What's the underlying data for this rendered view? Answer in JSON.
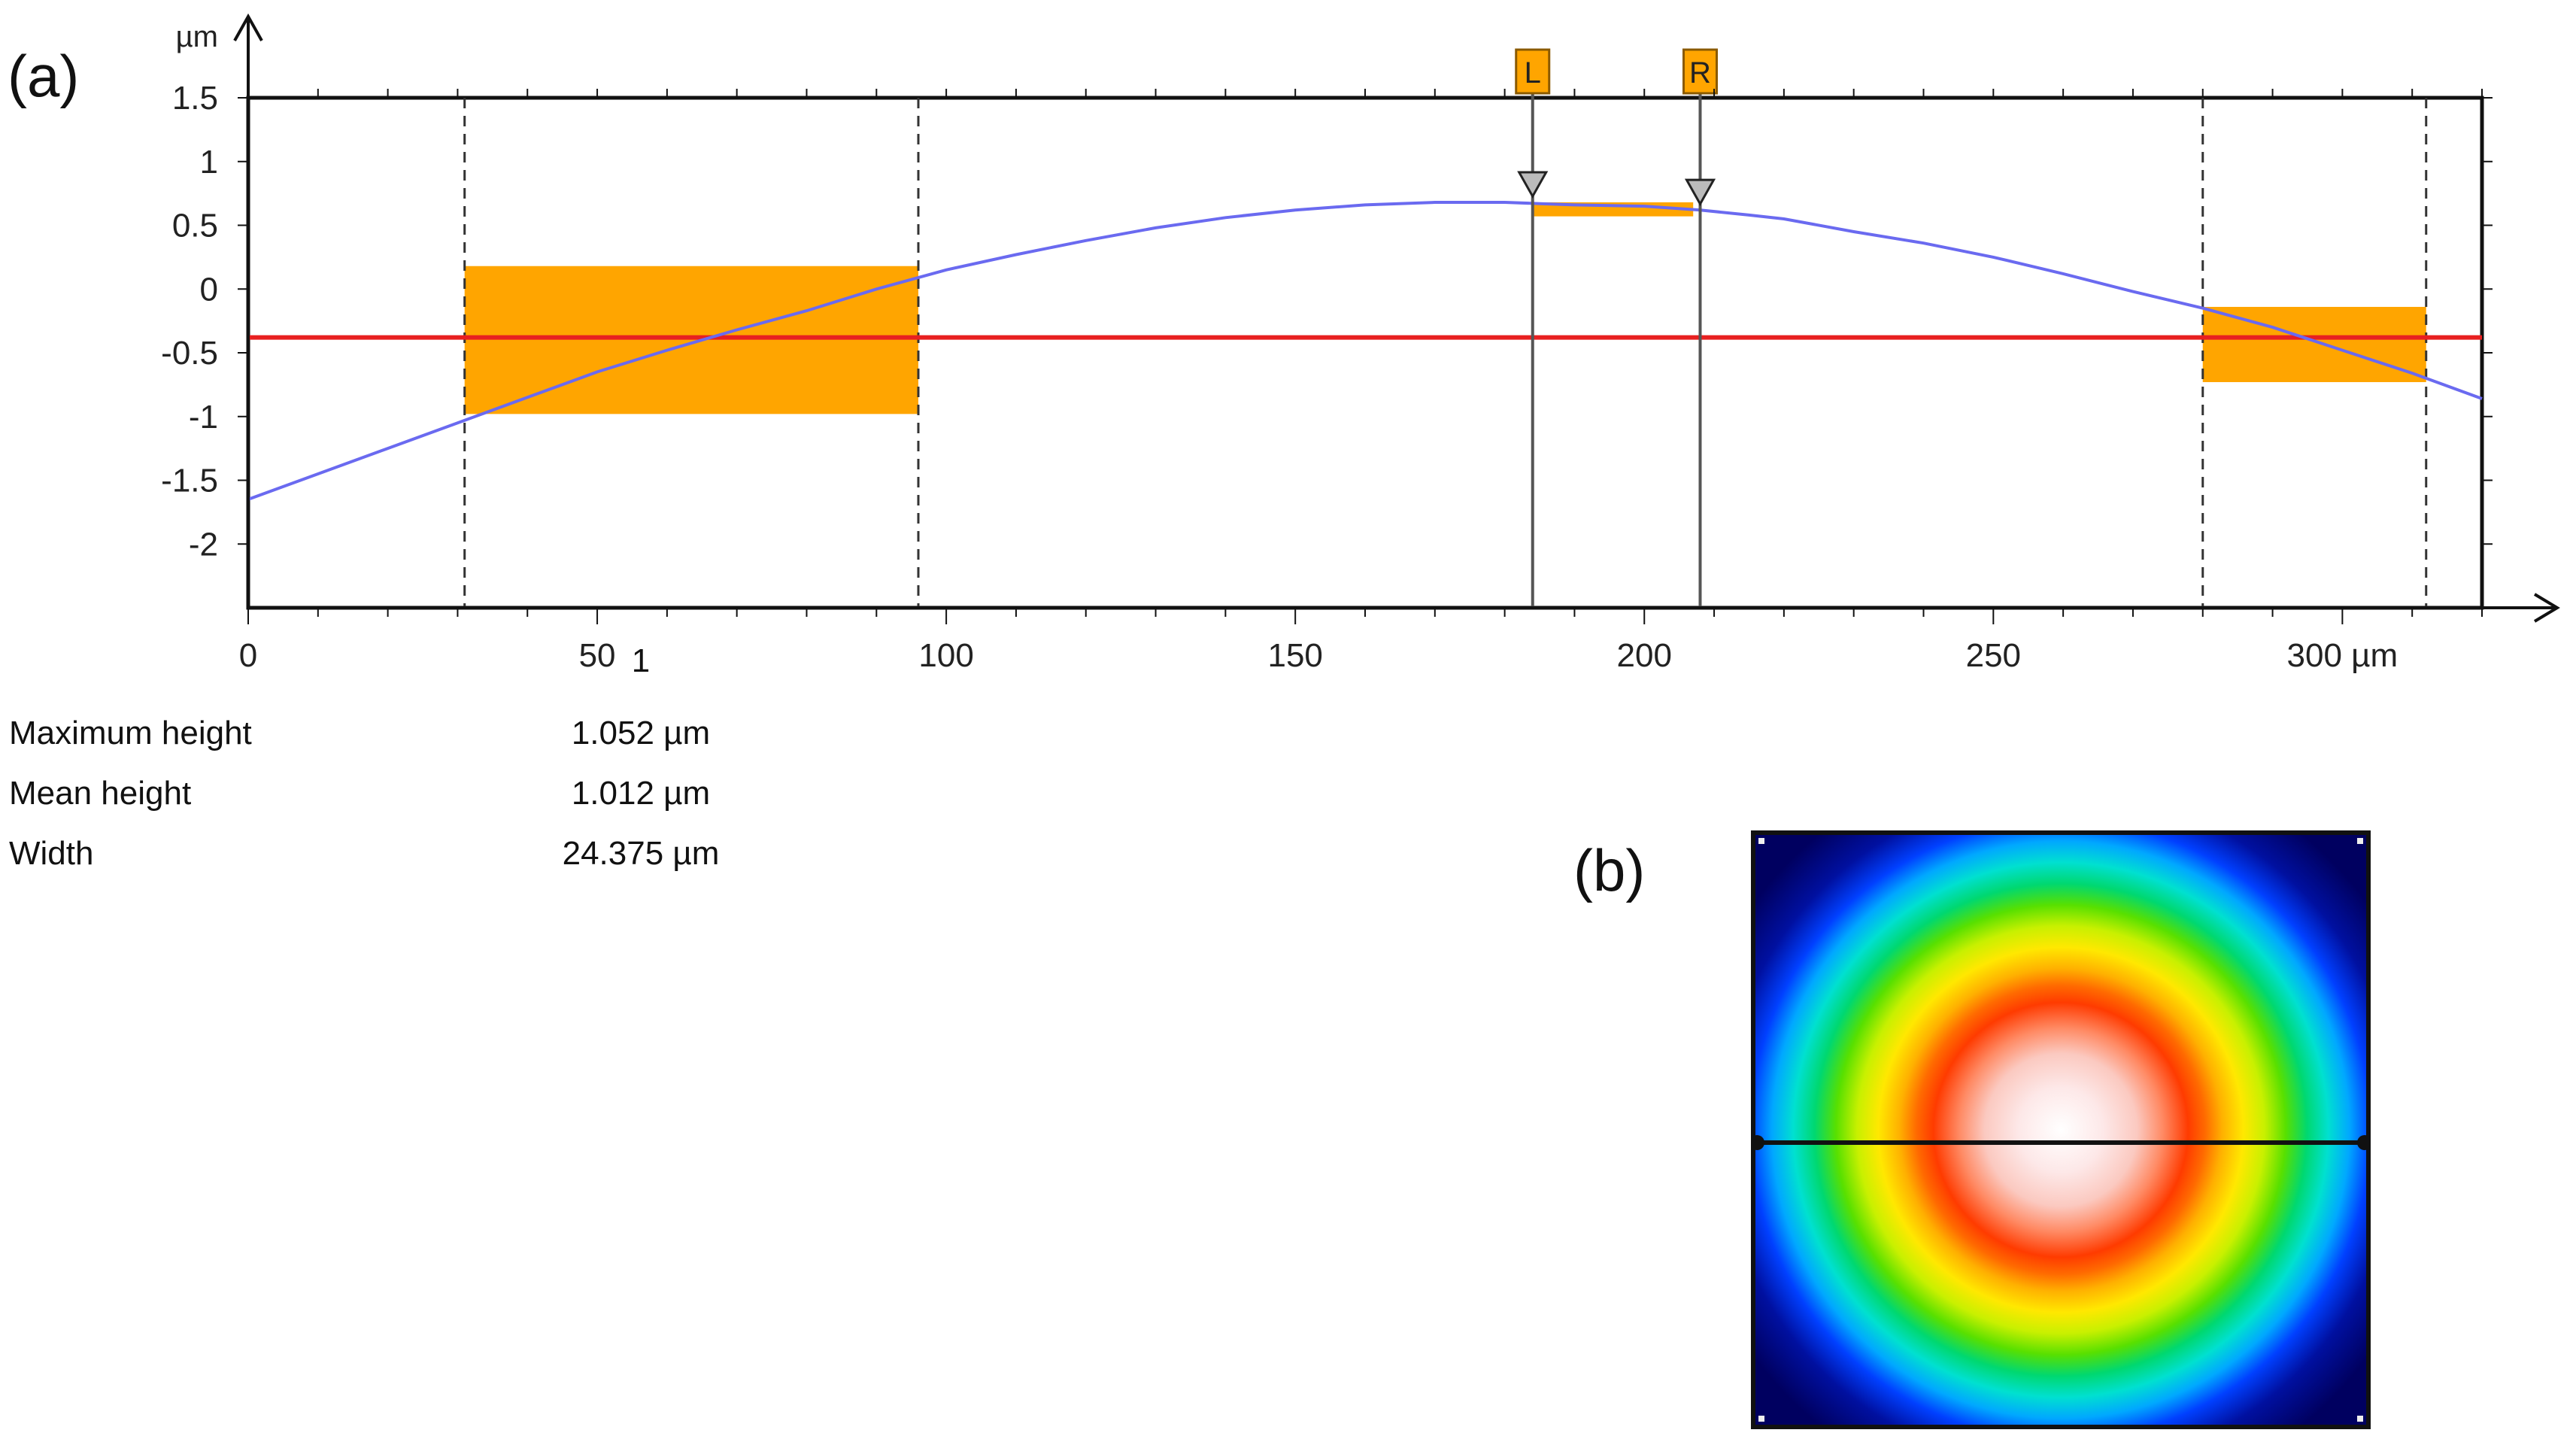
{
  "chart_data": {
    "type": "line",
    "title": "",
    "xlabel": "µm",
    "ylabel": "µm",
    "xlim": [
      0,
      320
    ],
    "ylim": [
      -2.5,
      1.5
    ],
    "x_ticks": [
      0,
      50,
      100,
      150,
      200,
      250,
      300
    ],
    "x_tick_labels": [
      "0",
      "50",
      "100",
      "150",
      "200",
      "250",
      "300 µm"
    ],
    "y_ticks": [
      1.5,
      1,
      0.5,
      0,
      -0.5,
      -1,
      -1.5,
      -2
    ],
    "y_tick_labels": [
      "1.5",
      "1",
      "0.5",
      "0",
      "-0.5",
      "-1",
      "-1.5",
      "-2"
    ],
    "y_unit_label": "µm",
    "series": [
      {
        "name": "profile",
        "color": "#6a6af0",
        "x": [
          0,
          10,
          20,
          30,
          40,
          50,
          60,
          70,
          80,
          90,
          100,
          110,
          120,
          130,
          140,
          150,
          160,
          170,
          180,
          185,
          190,
          200,
          208,
          215,
          220,
          230,
          240,
          250,
          260,
          270,
          280,
          290,
          300,
          310,
          320
        ],
        "y": [
          -1.65,
          -1.45,
          -1.25,
          -1.05,
          -0.85,
          -0.65,
          -0.48,
          -0.32,
          -0.17,
          0.0,
          0.15,
          0.27,
          0.38,
          0.48,
          0.56,
          0.62,
          0.66,
          0.68,
          0.68,
          0.67,
          0.66,
          0.65,
          0.62,
          0.58,
          0.55,
          0.45,
          0.36,
          0.25,
          0.12,
          -0.02,
          -0.15,
          -0.3,
          -0.48,
          -0.66,
          -0.86
        ]
      }
    ],
    "reference_line": {
      "y": -0.38,
      "color": "#e82020"
    },
    "regions": [
      {
        "x": [
          31,
          96
        ],
        "y": [
          -0.98,
          0.18
        ],
        "color": "#ffa500"
      },
      {
        "x": [
          184,
          207
        ],
        "y": [
          0.57,
          0.68
        ],
        "color": "#ffa500"
      },
      {
        "x": [
          280,
          312
        ],
        "y": [
          -0.73,
          -0.14
        ],
        "color": "#ffa500"
      }
    ],
    "dashed_lines_x": [
      31,
      96,
      280,
      312
    ],
    "cursors": [
      {
        "label": "L",
        "x": 184,
        "y": 0.68
      },
      {
        "label": "R",
        "x": 208,
        "y": 0.62
      }
    ]
  },
  "panel_labels": {
    "a": "(a)",
    "b": "(b)"
  },
  "results": {
    "column_header": "1",
    "rows": [
      {
        "label": "Maximum height",
        "value": "1.052 µm"
      },
      {
        "label": "Mean height",
        "value": "1.012 µm"
      },
      {
        "label": "Width",
        "value": "24.375 µm"
      }
    ]
  },
  "colors": {
    "region_fill": "#ffa500",
    "reference_line": "#e82020",
    "profile": "#6a6af0"
  }
}
